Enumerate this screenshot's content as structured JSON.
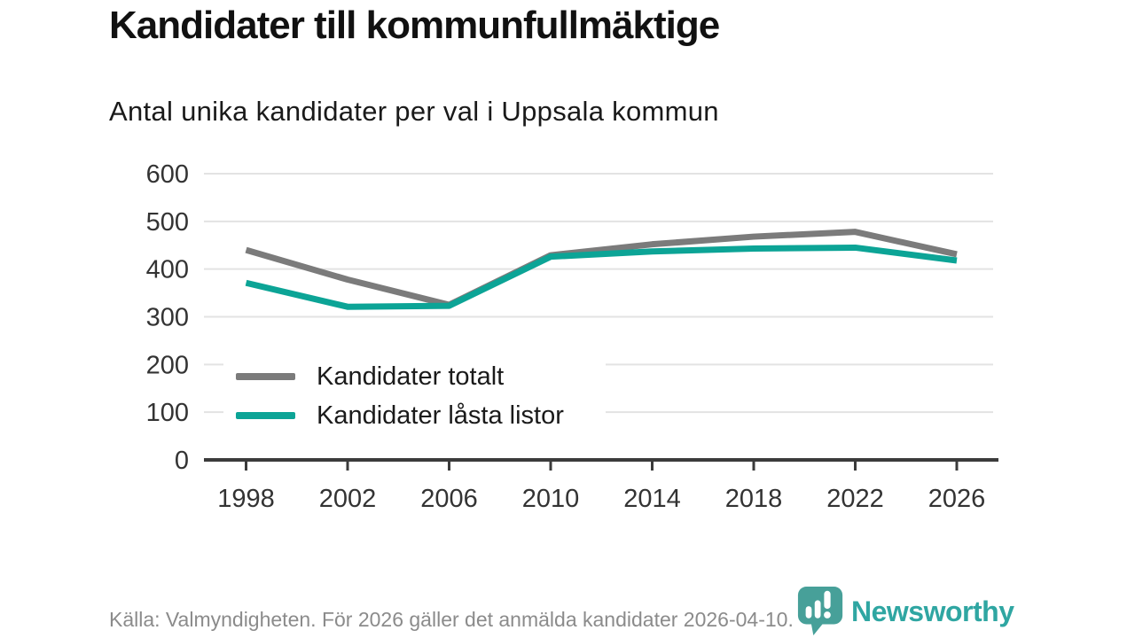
{
  "header": {
    "title": "Kandidater till kommunfullmäktige",
    "subtitle": "Antal unika kandidater per val i Uppsala kommun"
  },
  "chart_data": {
    "type": "line",
    "x": [
      1998,
      2002,
      2006,
      2010,
      2014,
      2018,
      2022,
      2026
    ],
    "series": [
      {
        "name": "Kandidater totalt",
        "color": "#7b7b7b",
        "values": [
          440,
          378,
          325,
          429,
          452,
          468,
          478,
          431
        ]
      },
      {
        "name": "Kandidater låsta listor",
        "color": "#0ca496",
        "values": [
          371,
          321,
          323,
          426,
          437,
          443,
          445,
          418
        ]
      }
    ],
    "title": "Kandidater till kommunfullmäktige",
    "subtitle": "Antal unika kandidater per val i Uppsala kommun",
    "xlabel": "",
    "ylabel": "",
    "ylim": [
      0,
      600
    ],
    "y_ticks": [
      0,
      100,
      200,
      300,
      400,
      500,
      600
    ],
    "grid": "horizontal-only",
    "legend_position": "inside-middle-left"
  },
  "colors": {
    "gridline": "#e3e3e3",
    "axis": "#3b3b3b",
    "tick_label": "#333333",
    "title_text": "#111111",
    "source_text": "#8b8b8b",
    "brand_icon": "#47a099",
    "brand_text": "#2fa6a2"
  },
  "footer": {
    "source_text": "Källa: Valmyndigheten. För 2026 gäller det anmälda kandidater 2026-04-10.",
    "brand": "Newsworthy"
  }
}
